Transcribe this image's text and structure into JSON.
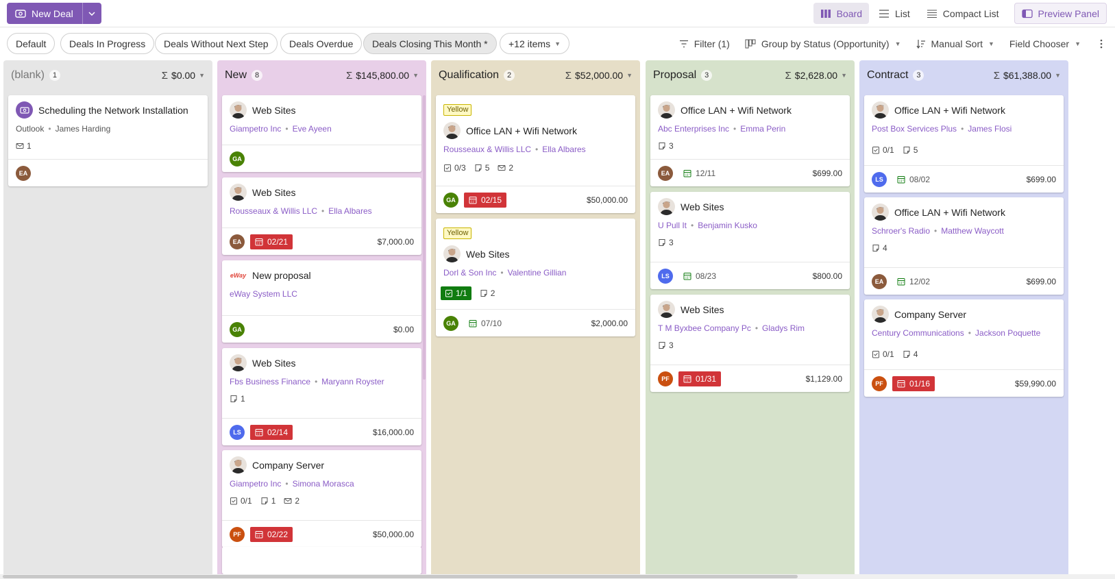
{
  "topbar": {
    "new_deal_label": "New Deal",
    "views": [
      {
        "label": "Board",
        "active": true,
        "icon": "board-icon"
      },
      {
        "label": "List",
        "active": false,
        "icon": "list-icon"
      },
      {
        "label": "Compact List",
        "active": false,
        "icon": "compact-list-icon"
      }
    ],
    "preview_panel_label": "Preview Panel"
  },
  "filters": {
    "chips": [
      "Default",
      "Deals In Progress",
      "Deals Without Next Step",
      "Deals Overdue",
      "Deals Closing This Month *",
      "+12 items"
    ],
    "selected": "Deals Closing This Month *",
    "filter_label": "Filter (1)",
    "group_label": "Group by Status (Opportunity)",
    "sort_label": "Manual Sort",
    "field_chooser_label": "Field Chooser"
  },
  "colors": {
    "accent": "#7f58b4",
    "due_red": "#d13438",
    "done_green": "#107c10"
  },
  "columns": [
    {
      "title": "(blank)",
      "count": "1",
      "sum": "$0.00",
      "bg": "#e6e6e6",
      "title_color": "#777",
      "cards": [
        {
          "title": "Scheduling the Network Installation",
          "company": "Outlook",
          "contact": "James Harding",
          "company_gray": true,
          "meta": [
            {
              "icon": "mail-icon",
              "v": "1"
            }
          ],
          "owner": "EA",
          "date": "",
          "amount": "",
          "avatar": "deal-icon"
        }
      ]
    },
    {
      "title": "New",
      "count": "8",
      "sum": "$145,800.00",
      "bg": "#e8cfe8",
      "cards": [
        {
          "title": "Web Sites",
          "company": "Giampetro Inc",
          "contact": "Eve Ayeen",
          "meta": [],
          "owner": "GA",
          "date": "",
          "amount": "",
          "avatar": "person"
        },
        {
          "title": "Web Sites",
          "company": "Rousseaux & Willis LLC",
          "contact": "Ella Albares",
          "meta": [],
          "owner": "EA",
          "date": "02/21",
          "date_style": "red",
          "amount": "$7,000.00",
          "avatar": "person"
        },
        {
          "title": "New proposal",
          "company": "eWay System LLC",
          "contact": "",
          "meta": [],
          "owner": "GA",
          "date": "",
          "amount": "$0.00",
          "avatar": "eway-logo",
          "logo_text": "eWay"
        },
        {
          "title": "Web Sites",
          "company": "Fbs Business Finance",
          "contact": "Maryann Royster",
          "meta": [
            {
              "icon": "note-icon",
              "v": "1"
            }
          ],
          "owner": "LS",
          "date": "02/14",
          "date_style": "red",
          "amount": "$16,000.00",
          "avatar": "person"
        },
        {
          "title": "Company Server",
          "company": "Giampetro Inc",
          "contact": "Simona Morasca",
          "meta": [
            {
              "icon": "task-icon",
              "v": "0/1"
            },
            {
              "icon": "note-icon",
              "v": "1"
            },
            {
              "icon": "mail-icon",
              "v": "2"
            }
          ],
          "owner": "PF",
          "date": "02/22",
          "date_style": "red",
          "amount": "$50,000.00",
          "avatar": "person"
        }
      ]
    },
    {
      "title": "Qualification",
      "count": "2",
      "sum": "$52,000.00",
      "bg": "#e6dec7",
      "cards": [
        {
          "tag": "Yellow",
          "title": "Office LAN + Wifi Network",
          "company": "Rousseaux & Willis LLC",
          "contact": "Ella Albares",
          "meta": [
            {
              "icon": "task-icon",
              "v": "0/3"
            },
            {
              "icon": "note-icon",
              "v": "5"
            },
            {
              "icon": "mail-icon",
              "v": "2"
            }
          ],
          "owner": "GA",
          "date": "02/15",
          "date_style": "red",
          "amount": "$50,000.00",
          "avatar": "person"
        },
        {
          "tag": "Yellow",
          "title": "Web Sites",
          "company": "Dorl & Son Inc",
          "contact": "Valentine Gillian",
          "meta": [
            {
              "icon": "task-icon",
              "v": "1/1",
              "green": true
            },
            {
              "icon": "note-icon",
              "v": "2"
            }
          ],
          "owner": "GA",
          "date": "07/10",
          "date_style": "plain",
          "amount": "$2,000.00",
          "avatar": "person"
        }
      ]
    },
    {
      "title": "Proposal",
      "count": "3",
      "sum": "$2,628.00",
      "bg": "#d6e2cb",
      "cards": [
        {
          "title": "Office LAN + Wifi Network",
          "company": "Abc Enterprises Inc",
          "contact": "Emma Perin",
          "meta": [
            {
              "icon": "note-icon",
              "v": "3"
            }
          ],
          "owner": "EA",
          "date": "12/11",
          "date_style": "plain",
          "amount": "$699.00",
          "avatar": "person"
        },
        {
          "title": "Web Sites",
          "company": "U Pull It",
          "contact": "Benjamin Kusko",
          "meta": [
            {
              "icon": "note-icon",
              "v": "3"
            }
          ],
          "owner": "LS",
          "date": "08/23",
          "date_style": "plain",
          "amount": "$800.00",
          "avatar": "person"
        },
        {
          "title": "Web Sites",
          "company": "T M Byxbee Company Pc",
          "contact": "Gladys Rim",
          "meta": [
            {
              "icon": "note-icon",
              "v": "3"
            }
          ],
          "owner": "PF",
          "date": "01/31",
          "date_style": "red",
          "amount": "$1,129.00",
          "avatar": "person"
        }
      ]
    },
    {
      "title": "Contract",
      "count": "3",
      "sum": "$61,388.00",
      "bg": "#d3d7f3",
      "cards": [
        {
          "title": "Office LAN + Wifi Network",
          "company": "Post Box Services Plus",
          "contact": "James Flosi",
          "meta": [
            {
              "icon": "task-icon",
              "v": "0/1"
            },
            {
              "icon": "note-icon",
              "v": "5"
            }
          ],
          "owner": "LS",
          "date": "08/02",
          "date_style": "plain",
          "amount": "$699.00",
          "avatar": "person"
        },
        {
          "title": "Office LAN + Wifi Network",
          "company": "Schroer's Radio",
          "contact": "Matthew Waycott",
          "meta": [
            {
              "icon": "note-icon",
              "v": "4"
            }
          ],
          "owner": "EA",
          "date": "12/02",
          "date_style": "plain",
          "amount": "$699.00",
          "avatar": "person"
        },
        {
          "title": "Company Server",
          "company": "Century Communications",
          "contact": "Jackson Poquette",
          "meta": [
            {
              "icon": "task-icon",
              "v": "0/1"
            },
            {
              "icon": "note-icon",
              "v": "4"
            }
          ],
          "owner": "PF",
          "date": "01/16",
          "date_style": "red",
          "amount": "$59,990.00",
          "avatar": "person"
        }
      ]
    }
  ],
  "owner_colors": {
    "EA": "#8b5a3c",
    "GA": "#498205",
    "LS": "#4f6bed",
    "PF": "#ca5010"
  }
}
